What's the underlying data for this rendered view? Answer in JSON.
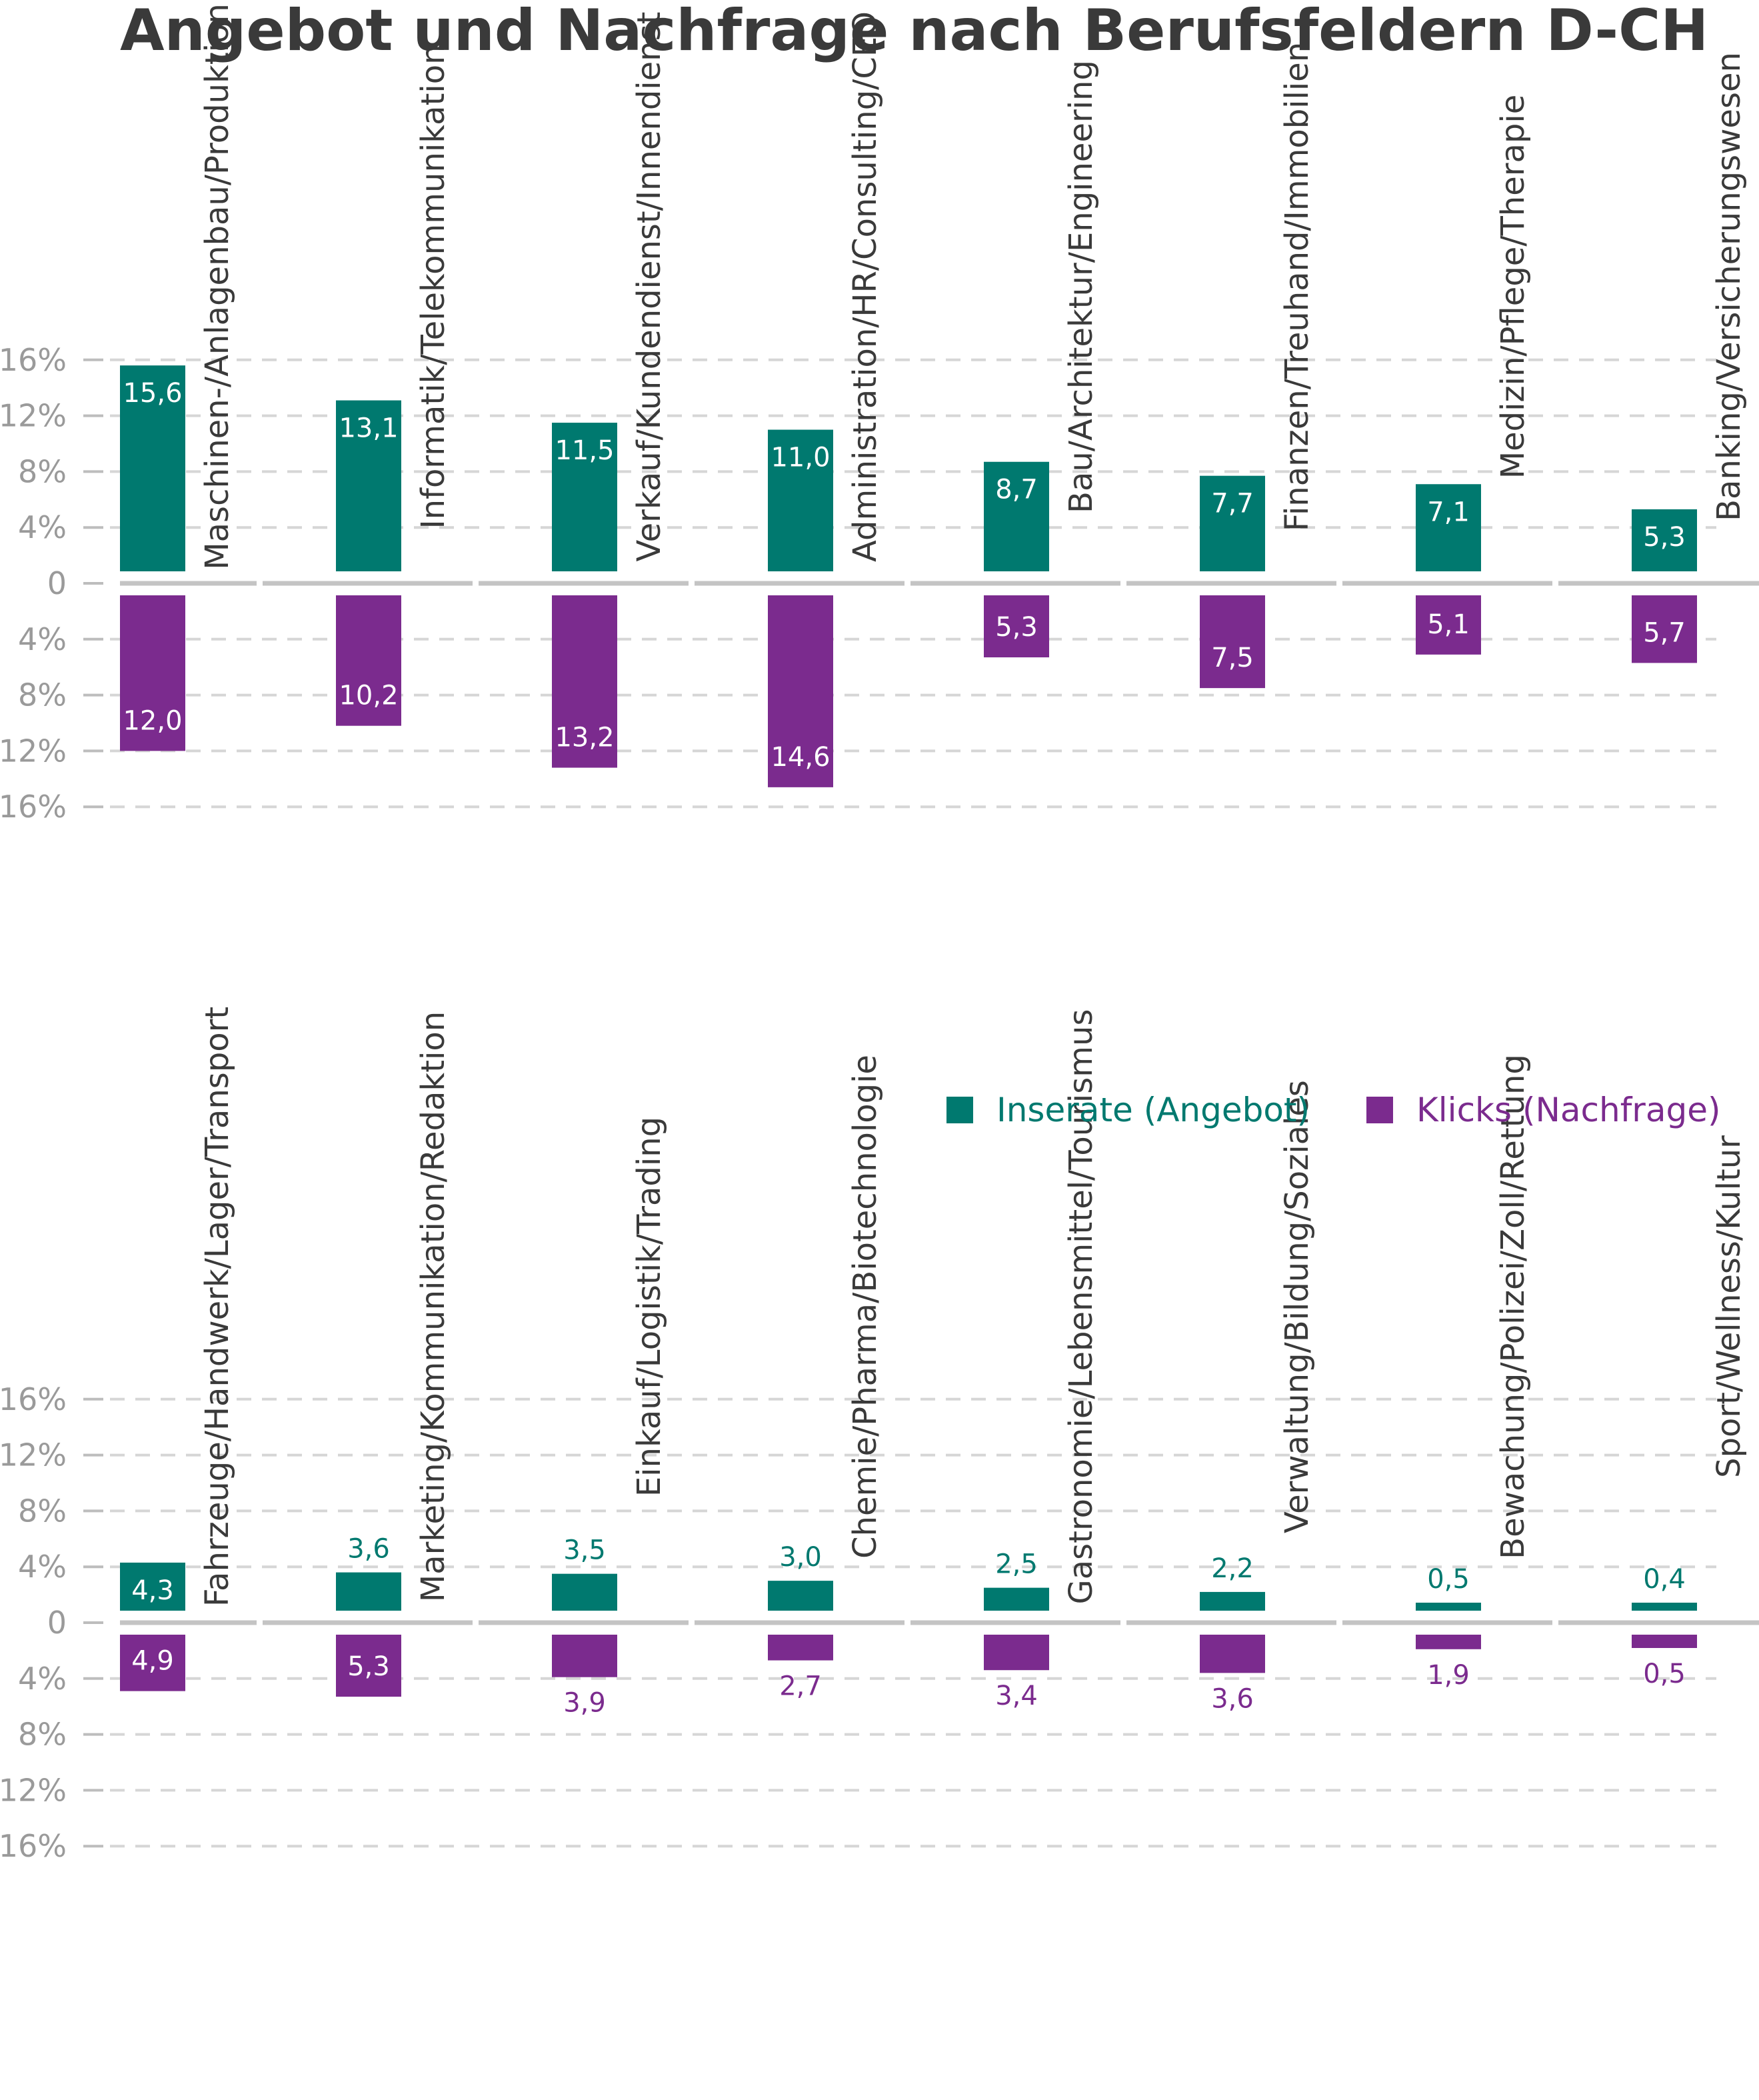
{
  "chart_data": {
    "type": "bar",
    "title": "Angebot und Nachfrage nach Berufsfeldern D-CH",
    "colors": {
      "angebot": "#00796f",
      "nachfrage": "#7b2b8e"
    },
    "legend": [
      {
        "key": "angebot",
        "label": "Inserate (Angebot)"
      },
      {
        "key": "nachfrage",
        "label": "Klicks (Nachfrage)"
      }
    ],
    "legend_position": "middle-right",
    "grid": true,
    "ylim": [
      -16,
      16
    ],
    "y_ticks": [
      16,
      12,
      8,
      4,
      0,
      -4,
      -8,
      -12,
      -16
    ],
    "tick_labels": [
      "16%",
      "12%",
      "8%",
      "4%",
      "0",
      "4%",
      "8%",
      "12%",
      "16%"
    ],
    "panels": [
      {
        "categories": [
          "Maschinen-/Anlagenbau/Produktion",
          "Informatik/Telekommunikation",
          "Verkauf/Kundendienst/Innendienst",
          "Administration/HR/Consulting/CEO",
          "Bau/Architektur/Engineering",
          "Finanzen/Treuhand/Immobilien",
          "Medizin/Pflege/Therapie",
          "Banking/Versicherungswesen"
        ],
        "angebot": [
          15.6,
          13.1,
          11.5,
          11.0,
          8.7,
          7.7,
          7.1,
          5.3
        ],
        "angebot_labels": [
          "15,6",
          "13,1",
          "11,5",
          "11,0",
          "8,7",
          "7,7",
          "7,1",
          "5,3"
        ],
        "nachfrage": [
          12.0,
          10.2,
          13.2,
          14.6,
          5.3,
          7.5,
          5.1,
          5.7
        ],
        "nachfrage_labels": [
          "12,0",
          "10,2",
          "13,2",
          "14,6",
          "5,3",
          "7,5",
          "5,1",
          "5,7"
        ]
      },
      {
        "categories": [
          "Fahrzeuge/Handwerk/Lager/Transport",
          "Marketing/Kommunikation/Redaktion",
          "Einkauf/Logistik/Trading",
          "Chemie/Pharma/Biotechnologie",
          "Gastronomie/Lebensmittel/Tourismus",
          "Verwaltung/Bildung/Soziales",
          "Bewachung/Polizei/Zoll/Rettung",
          "Sport/Wellness/Kultur"
        ],
        "angebot": [
          4.3,
          3.6,
          3.5,
          3.0,
          2.5,
          2.2,
          0.5,
          0.4
        ],
        "angebot_labels": [
          "4,3",
          "3,6",
          "3,5",
          "3,0",
          "2,5",
          "2,2",
          "0,5",
          "0,4"
        ],
        "nachfrage": [
          4.9,
          5.3,
          3.9,
          2.7,
          3.4,
          3.6,
          1.9,
          0.5
        ],
        "nachfrage_labels": [
          "4,9",
          "5,3",
          "3,9",
          "2,7",
          "3,4",
          "3,6",
          "1,9",
          "0,5"
        ]
      }
    ]
  }
}
